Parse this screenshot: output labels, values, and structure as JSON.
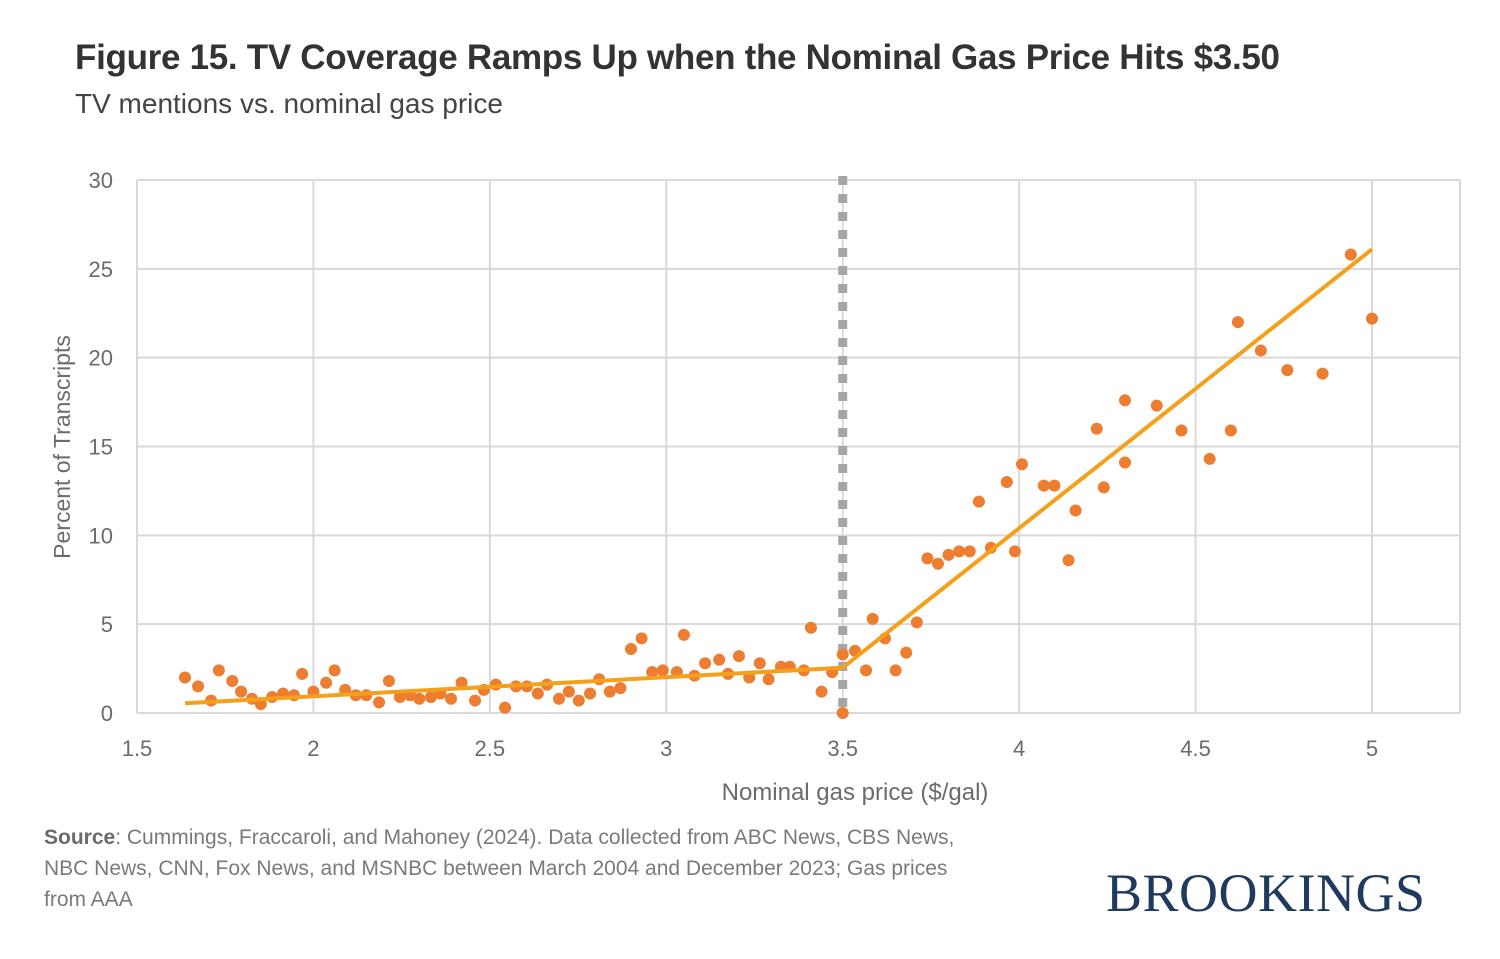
{
  "header": {
    "title": "Figure 15. TV Coverage Ramps Up when the Nominal Gas Price Hits $3.50",
    "subtitle": "TV mentions vs. nominal gas price"
  },
  "footer": {
    "source_label": "Source",
    "source_text": ": Cummings, Fraccaroli, and Mahoney (2024). Data collected from ABC News, CBS News, NBC News, CNN, Fox News, and MSNBC between March 2004 and December 2023; Gas prices from AAA",
    "logo": "BROOKINGS"
  },
  "colors": {
    "points": "#ED7D31",
    "trend": "#F5A01A",
    "threshold": "#A5A5A5",
    "grid": "#D9D9D9",
    "logo": "#1F3A5F"
  },
  "chart_data": {
    "type": "scatter",
    "title": "Figure 15. TV Coverage Ramps Up when the Nominal Gas Price Hits $3.50",
    "subtitle": "TV mentions vs. nominal gas price",
    "xlabel": "Nominal gas price ($/gal)",
    "ylabel": "Percent of Transcripts",
    "xlim": [
      1.5,
      5.25
    ],
    "ylim": [
      0,
      30
    ],
    "xticks": [
      1.5,
      2,
      2.5,
      3,
      3.5,
      4,
      4.5,
      5
    ],
    "xtick_labels": [
      "1.5",
      "2",
      "2.5",
      "3",
      "3.5",
      "4",
      "4.5",
      "5"
    ],
    "yticks": [
      0,
      5,
      10,
      15,
      20,
      25,
      30
    ],
    "ytick_labels": [
      "0",
      "5",
      "10",
      "15",
      "20",
      "25",
      "30"
    ],
    "grid": true,
    "threshold_line": {
      "x": 3.5,
      "style": "dotted"
    },
    "trend_line": [
      [
        1.636,
        0.55
      ],
      [
        3.5,
        2.55
      ],
      [
        5.0,
        26.1
      ]
    ],
    "points": [
      [
        1.636,
        2.0
      ],
      [
        1.673,
        1.5
      ],
      [
        1.71,
        0.7
      ],
      [
        1.732,
        2.4
      ],
      [
        1.77,
        1.8
      ],
      [
        1.795,
        1.2
      ],
      [
        1.826,
        0.8
      ],
      [
        1.851,
        0.5
      ],
      [
        1.883,
        0.9
      ],
      [
        1.914,
        1.1
      ],
      [
        1.945,
        1.0
      ],
      [
        1.968,
        2.2
      ],
      [
        2.0,
        1.2
      ],
      [
        2.036,
        1.7
      ],
      [
        2.06,
        2.4
      ],
      [
        2.09,
        1.3
      ],
      [
        2.12,
        1.0
      ],
      [
        2.15,
        1.0
      ],
      [
        2.186,
        0.6
      ],
      [
        2.214,
        1.8
      ],
      [
        2.245,
        0.9
      ],
      [
        2.274,
        1.0
      ],
      [
        2.3,
        0.8
      ],
      [
        2.333,
        0.9
      ],
      [
        2.36,
        1.1
      ],
      [
        2.39,
        0.8
      ],
      [
        2.42,
        1.7
      ],
      [
        2.458,
        0.7
      ],
      [
        2.483,
        1.3
      ],
      [
        2.517,
        1.6
      ],
      [
        2.543,
        0.3
      ],
      [
        2.574,
        1.5
      ],
      [
        2.605,
        1.5
      ],
      [
        2.636,
        1.1
      ],
      [
        2.662,
        1.6
      ],
      [
        2.696,
        0.8
      ],
      [
        2.724,
        1.2
      ],
      [
        2.752,
        0.7
      ],
      [
        2.784,
        1.1
      ],
      [
        2.81,
        1.9
      ],
      [
        2.84,
        1.2
      ],
      [
        2.87,
        1.4
      ],
      [
        2.9,
        3.6
      ],
      [
        2.93,
        4.2
      ],
      [
        2.96,
        2.3
      ],
      [
        2.99,
        2.4
      ],
      [
        3.03,
        2.3
      ],
      [
        3.05,
        4.4
      ],
      [
        3.08,
        2.1
      ],
      [
        3.11,
        2.8
      ],
      [
        3.15,
        3.0
      ],
      [
        3.175,
        2.2
      ],
      [
        3.206,
        3.2
      ],
      [
        3.235,
        2.0
      ],
      [
        3.265,
        2.8
      ],
      [
        3.29,
        1.9
      ],
      [
        3.325,
        2.6
      ],
      [
        3.35,
        2.6
      ],
      [
        3.39,
        2.4
      ],
      [
        3.41,
        4.8
      ],
      [
        3.44,
        1.2
      ],
      [
        3.47,
        2.3
      ],
      [
        3.5,
        0.0
      ],
      [
        3.5,
        3.3
      ],
      [
        3.535,
        3.5
      ],
      [
        3.566,
        2.4
      ],
      [
        3.585,
        5.3
      ],
      [
        3.62,
        4.2
      ],
      [
        3.65,
        2.4
      ],
      [
        3.68,
        3.4
      ],
      [
        3.71,
        5.1
      ],
      [
        3.74,
        8.7
      ],
      [
        3.77,
        8.4
      ],
      [
        3.8,
        8.9
      ],
      [
        3.83,
        9.1
      ],
      [
        3.86,
        9.1
      ],
      [
        3.886,
        11.9
      ],
      [
        3.92,
        9.3
      ],
      [
        3.965,
        13.0
      ],
      [
        3.988,
        9.1
      ],
      [
        4.008,
        14.0
      ],
      [
        4.07,
        12.8
      ],
      [
        4.1,
        12.8
      ],
      [
        4.14,
        8.6
      ],
      [
        4.16,
        11.4
      ],
      [
        4.22,
        16.0
      ],
      [
        4.24,
        12.7
      ],
      [
        4.3,
        17.6
      ],
      [
        4.3,
        14.1
      ],
      [
        4.39,
        17.3
      ],
      [
        4.46,
        15.9
      ],
      [
        4.54,
        14.3
      ],
      [
        4.6,
        15.9
      ],
      [
        4.62,
        22.0
      ],
      [
        4.685,
        20.4
      ],
      [
        4.76,
        19.3
      ],
      [
        4.86,
        19.1
      ],
      [
        4.94,
        25.8
      ],
      [
        5.0,
        22.2
      ]
    ]
  }
}
